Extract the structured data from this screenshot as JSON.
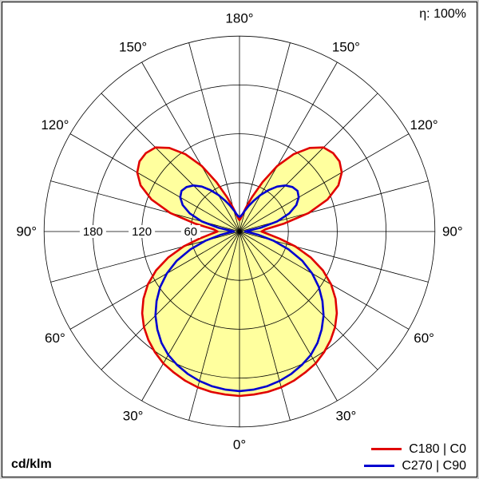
{
  "header": {
    "eta": "η: 100%"
  },
  "footer": {
    "unit": "cd/klm"
  },
  "chart_data": {
    "type": "line",
    "polar": true,
    "description": "Luminous intensity distribution polar curve, 0° at nadir (bottom), 180° at zenith (top), values in cd/klm",
    "unit": "cd/klm",
    "r_max": 240,
    "rings": [
      60,
      120,
      180,
      240
    ],
    "radial_tick_labels": [
      {
        "value": 180,
        "label": "180"
      },
      {
        "value": 120,
        "label": "120"
      },
      {
        "value": 60,
        "label": "60"
      }
    ],
    "spoke_step_deg": 15,
    "angle_labels": [
      {
        "deg": 0,
        "text": "0°"
      },
      {
        "deg": 30,
        "text": "30°"
      },
      {
        "deg": 60,
        "text": "60°"
      },
      {
        "deg": 90,
        "text": "90°"
      },
      {
        "deg": 120,
        "text": "120°"
      },
      {
        "deg": 150,
        "text": "150°"
      },
      {
        "deg": 180,
        "text": "180°"
      }
    ],
    "center": {
      "x": 300,
      "y": 290
    },
    "pixels_per_unit": 1.02,
    "angle_label_offset": 22,
    "grid_color": "#000000",
    "curve_width": 2.6,
    "gammas": [
      0,
      5,
      10,
      15,
      20,
      25,
      30,
      35,
      40,
      45,
      50,
      55,
      60,
      65,
      70,
      75,
      80,
      85,
      90,
      95,
      100,
      105,
      110,
      115,
      120,
      125,
      130,
      135,
      140,
      145,
      150,
      155,
      160,
      165,
      170,
      175,
      180
    ],
    "series": [
      {
        "name": "C180 | C0",
        "color": "#e00000",
        "fill": "#ffff9e",
        "values": [
          202,
          201,
          200,
          198,
          195,
          191,
          187,
          181,
          174,
          166,
          156,
          144,
          130,
          113,
          93,
          71,
          50,
          35,
          27,
          32,
          55,
          88,
          115,
          134,
          145,
          150,
          150,
          146,
          134,
          116,
          93,
          67,
          45,
          30,
          21,
          16,
          14
        ]
      },
      {
        "name": "C270 | C90",
        "color": "#0000d0",
        "fill": "none",
        "values": [
          196,
          195,
          193,
          190,
          186,
          181,
          175,
          167,
          157,
          146,
          133,
          119,
          103,
          85,
          64,
          43,
          24,
          12,
          7,
          10,
          26,
          48,
          65,
          77,
          84,
          87,
          85,
          80,
          72,
          62,
          52,
          42,
          34,
          27,
          22,
          19,
          18
        ]
      }
    ]
  }
}
